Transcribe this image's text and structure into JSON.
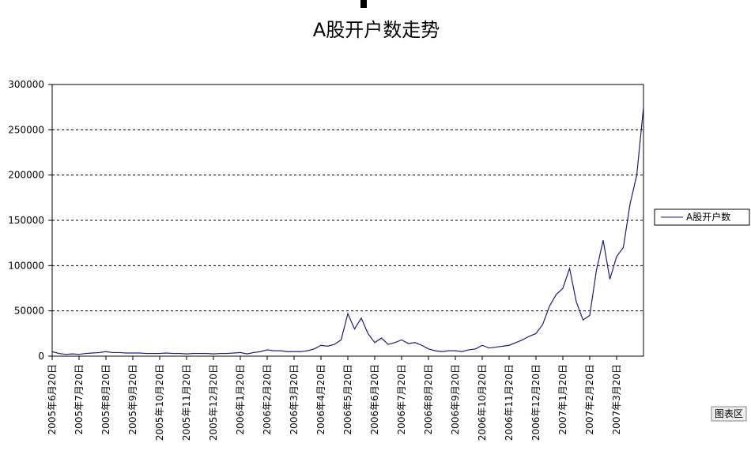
{
  "chart_data": {
    "type": "line",
    "title": "A股开户数走势",
    "categories": [
      "2005年6月20日",
      null,
      null,
      null,
      "2005年7月20日",
      null,
      null,
      null,
      "2005年8月20日",
      null,
      null,
      null,
      "2005年9月20日",
      null,
      null,
      null,
      "2005年10月20日",
      null,
      null,
      null,
      "2005年11月20日",
      null,
      null,
      null,
      "2005年12月20日",
      null,
      null,
      null,
      "2006年1月20日",
      null,
      null,
      null,
      "2006年2月20日",
      null,
      null,
      null,
      "2006年3月20日",
      null,
      null,
      null,
      "2006年4月20日",
      null,
      null,
      null,
      "2006年5月20日",
      null,
      null,
      null,
      "2006年6月20日",
      null,
      null,
      null,
      "2006年7月20日",
      null,
      null,
      null,
      "2006年8月20日",
      null,
      null,
      null,
      "2006年9月20日",
      null,
      null,
      null,
      "2006年10月20日",
      null,
      null,
      null,
      "2006年11月20日",
      null,
      null,
      null,
      "2006年12月20日",
      null,
      null,
      null,
      "2007年1月20日",
      null,
      null,
      null,
      "2007年2月20日",
      null,
      null,
      null,
      "2007年3月20日",
      null,
      null,
      null,
      null
    ],
    "series": [
      {
        "name": "A股开户数",
        "color": "#1f1f6e",
        "values": [
          5000,
          3000,
          2000,
          2500,
          2000,
          3000,
          3500,
          4000,
          5000,
          4000,
          4000,
          3500,
          3500,
          3500,
          3000,
          3000,
          3000,
          3500,
          3000,
          3000,
          2500,
          3000,
          3000,
          3000,
          2500,
          3000,
          3000,
          3500,
          4000,
          2500,
          4000,
          5000,
          7000,
          6000,
          6000,
          5000,
          5000,
          5000,
          6000,
          8000,
          12000,
          11000,
          13000,
          18000,
          47000,
          30000,
          42000,
          25000,
          15000,
          20000,
          13000,
          15000,
          18000,
          14000,
          15000,
          12000,
          8000,
          6000,
          5000,
          6000,
          6000,
          5000,
          7000,
          8000,
          12000,
          9000,
          10000,
          11000,
          12000,
          15000,
          18000,
          22000,
          25000,
          35000,
          55000,
          68000,
          75000,
          97000,
          60000,
          40000,
          45000,
          95000,
          128000,
          85000,
          110000,
          120000,
          168000,
          200000,
          275000
        ]
      }
    ],
    "ylim": [
      0,
      300000
    ],
    "yticks": [
      0,
      50000,
      100000,
      150000,
      200000,
      250000,
      300000
    ],
    "grid": true,
    "legend": "right",
    "chart_area_label": "图表区"
  }
}
